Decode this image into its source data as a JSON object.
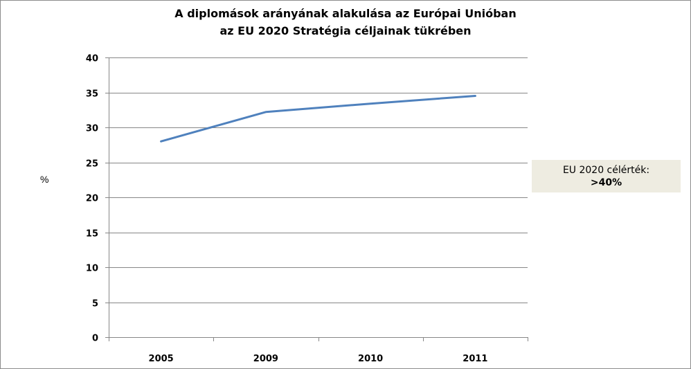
{
  "chart_data": {
    "type": "line",
    "title": [
      "A diplomások  arányának alakulása  az Európai Unióban",
      "az EU 2020 Stratégia céljainak tükrében"
    ],
    "ylabel": "%",
    "xlabel": "",
    "categories": [
      "2005",
      "2009",
      "2010",
      "2011"
    ],
    "series": [
      {
        "values": [
          28.0,
          32.2,
          33.4,
          34.5
        ],
        "color": "#4f81bd"
      }
    ],
    "ylim": [
      0,
      40
    ],
    "yticks": [
      0,
      5,
      10,
      15,
      20,
      25,
      30,
      35,
      40
    ],
    "grid": true,
    "legend": "none",
    "annotation": {
      "label": "EU 2020 célérték:",
      "value": ">40%",
      "background": "#eeece1"
    }
  }
}
